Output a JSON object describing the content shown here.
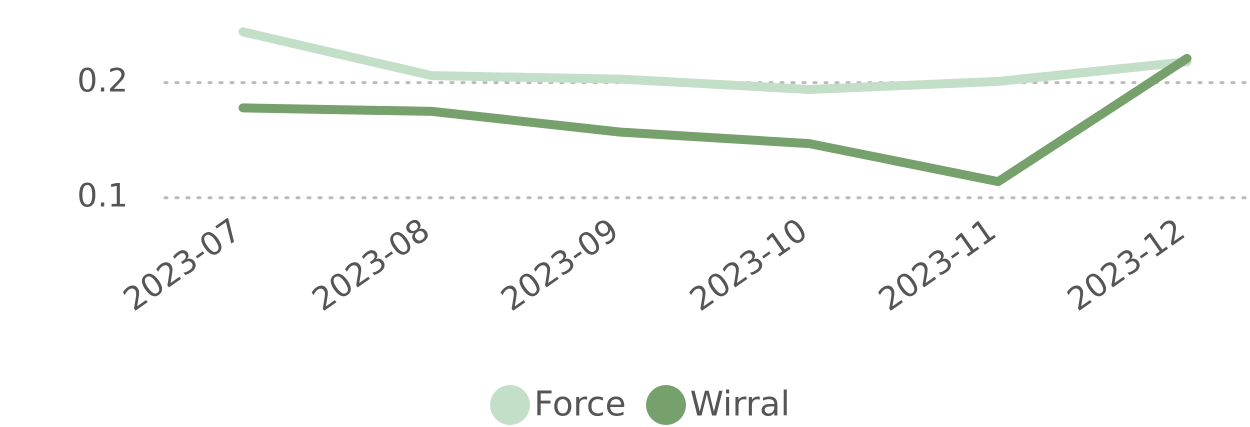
{
  "chart_data": {
    "type": "line",
    "categories": [
      "2023-07",
      "2023-08",
      "2023-09",
      "2023-10",
      "2023-11",
      "2023-12"
    ],
    "series": [
      {
        "name": "Force",
        "color": "#c3dfc8",
        "values": [
          0.244,
          0.206,
          0.203,
          0.194,
          0.201,
          0.218
        ]
      },
      {
        "name": "Wirral",
        "color": "#76a06c",
        "values": [
          0.178,
          0.175,
          0.157,
          0.147,
          0.114,
          0.221
        ]
      }
    ],
    "ylim": [
      0.072,
      0.263
    ],
    "yticks": [
      0.1,
      0.2
    ],
    "grid": true
  }
}
